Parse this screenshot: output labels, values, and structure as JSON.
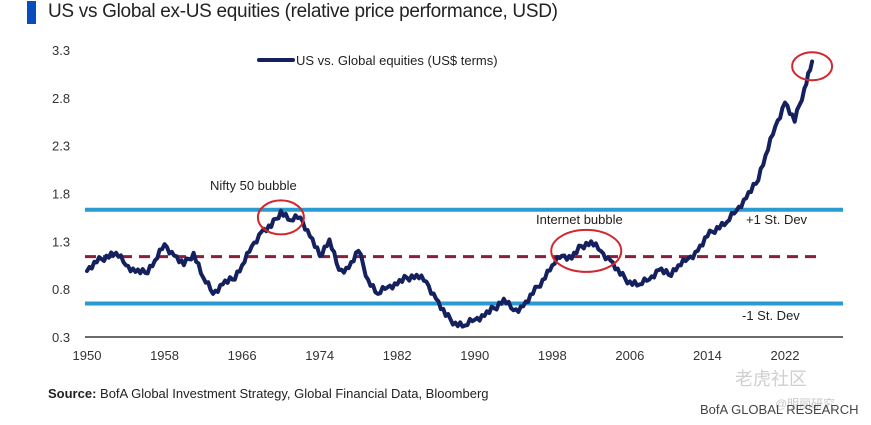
{
  "title": "US vs Global ex-US equities (relative price performance, USD)",
  "source_label": "Source:",
  "source_text": " BofA Global Investment Strategy, Global Financial Data, Bloomberg",
  "brand": "BofA GLOBAL RESEARCH",
  "watermark": {
    "logo": "老虎社区",
    "handle": "@明丽研究"
  },
  "colors": {
    "series": "#14215e",
    "band": "#2a9bd0",
    "mean": "#8b1f3a",
    "highlight": "#d0282e",
    "title_bar": "#0a4bbd"
  },
  "chart_data": {
    "type": "line",
    "title": "US vs Global ex-US equities (relative price performance, USD)",
    "xlabel": "",
    "ylabel": "",
    "xlim": [
      1950,
      2026
    ],
    "ylim": [
      0.3,
      3.3
    ],
    "yticks": [
      "3.3",
      "2.8",
      "2.3",
      "1.8",
      "1.3",
      "0.8",
      "0.3"
    ],
    "ytick_values": [
      3.3,
      2.8,
      2.3,
      1.8,
      1.3,
      0.8,
      0.3
    ],
    "xticks": [
      "1950",
      "1958",
      "1966",
      "1974",
      "1982",
      "1990",
      "1998",
      "2006",
      "2014",
      "2022"
    ],
    "xtick_values": [
      1950,
      1958,
      1966,
      1974,
      1982,
      1990,
      1998,
      2006,
      2014,
      2022
    ],
    "grid": false,
    "legend": {
      "position": "top-center",
      "entries": [
        "US vs. Global equities (US$ terms)"
      ]
    },
    "series": [
      {
        "name": "US vs. Global equities (US$ terms)",
        "x": [
          1950,
          1951,
          1952,
          1953,
          1954,
          1955,
          1956,
          1957,
          1958,
          1959,
          1960,
          1961,
          1962,
          1963,
          1964,
          1965,
          1966,
          1967,
          1968,
          1969,
          1970,
          1971,
          1972,
          1973,
          1974,
          1975,
          1976,
          1977,
          1978,
          1979,
          1980,
          1981,
          1982,
          1983,
          1984,
          1985,
          1986,
          1987,
          1988,
          1989,
          1990,
          1991,
          1992,
          1993,
          1994,
          1995,
          1996,
          1997,
          1998,
          1999,
          2000,
          2001,
          2002,
          2003,
          2004,
          2005,
          2006,
          2007,
          2008,
          2009,
          2010,
          2011,
          2012,
          2013,
          2014,
          2015,
          2016,
          2017,
          2018,
          2019,
          2020,
          2021,
          2022,
          2023,
          2024,
          2024.8
        ],
        "values": [
          0.99,
          1.08,
          1.15,
          1.18,
          1.05,
          0.98,
          0.97,
          1.1,
          1.27,
          1.15,
          1.05,
          1.18,
          0.92,
          0.75,
          0.85,
          0.9,
          1.05,
          1.25,
          1.4,
          1.45,
          1.62,
          1.52,
          1.55,
          1.35,
          1.15,
          1.32,
          1.0,
          1.02,
          1.2,
          0.9,
          0.75,
          0.82,
          0.85,
          0.92,
          0.95,
          0.88,
          0.7,
          0.52,
          0.45,
          0.42,
          0.48,
          0.52,
          0.6,
          0.7,
          0.58,
          0.62,
          0.75,
          0.9,
          1.05,
          1.15,
          1.12,
          1.25,
          1.3,
          1.2,
          1.1,
          0.95,
          0.88,
          0.85,
          0.9,
          1.0,
          0.95,
          1.05,
          1.12,
          1.2,
          1.35,
          1.45,
          1.5,
          1.62,
          1.75,
          1.9,
          2.2,
          2.5,
          2.75,
          2.55,
          2.9,
          3.18
        ]
      }
    ],
    "reference_lines": [
      {
        "name": "+1 St. Dev",
        "value": 1.63,
        "style": "solid"
      },
      {
        "name": "mean",
        "value": 1.14,
        "style": "dashed"
      },
      {
        "name": "-1 St. Dev",
        "value": 0.65,
        "style": "solid"
      }
    ],
    "annotations": [
      {
        "text": "Nifty 50 bubble",
        "x": 1970,
        "y": 1.55,
        "highlight": "ellipse"
      },
      {
        "text": "Internet bubble",
        "x": 2001.5,
        "y": 1.2,
        "highlight": "ellipse"
      },
      {
        "text": "",
        "x": 2024.8,
        "y": 3.13,
        "highlight": "ellipse"
      }
    ],
    "band_labels": [
      "+1 St. Dev",
      "-1 St. Dev"
    ]
  }
}
